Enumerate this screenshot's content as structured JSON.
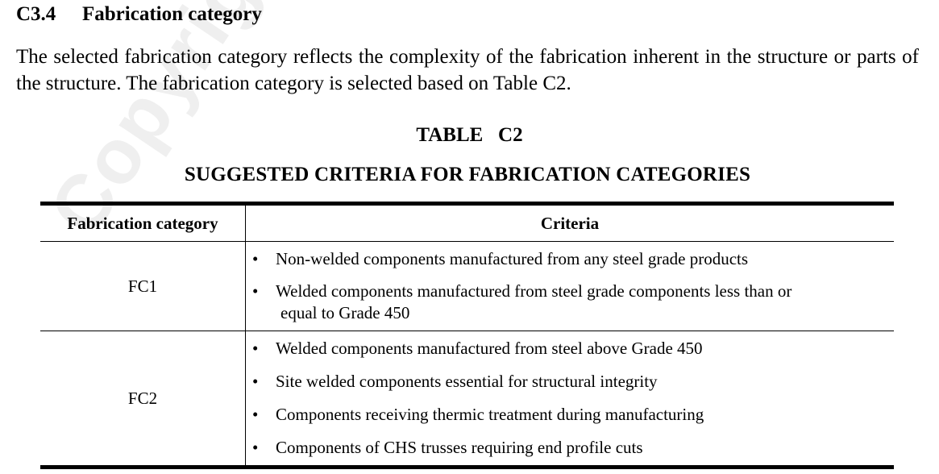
{
  "watermark": "Copyright Sample",
  "section": {
    "number": "C3.4",
    "title": "Fabrication category"
  },
  "paragraph": "The selected fabrication category reflects the complexity of the fabrication inherent in the structure or parts of the structure. The fabrication category is selected based on Table C2.",
  "table": {
    "number": "TABLE   C2",
    "title": "SUGGESTED CRITERIA FOR FABRICATION CATEGORIES",
    "headers": [
      "Fabrication category",
      "Criteria"
    ],
    "rows": [
      {
        "category": "FC1",
        "criteria": [
          "Non-welded components manufactured from any steel grade products",
          "Welded components manufactured from steel grade components less than or",
          "equal to Grade 450"
        ]
      },
      {
        "category": "FC2",
        "criteria": [
          "Welded components manufactured from steel above Grade 450",
          "Site welded components essential for structural integrity",
          "Components receiving thermic treatment during manufacturing",
          "Components of CHS trusses requiring end profile cuts"
        ]
      }
    ]
  }
}
